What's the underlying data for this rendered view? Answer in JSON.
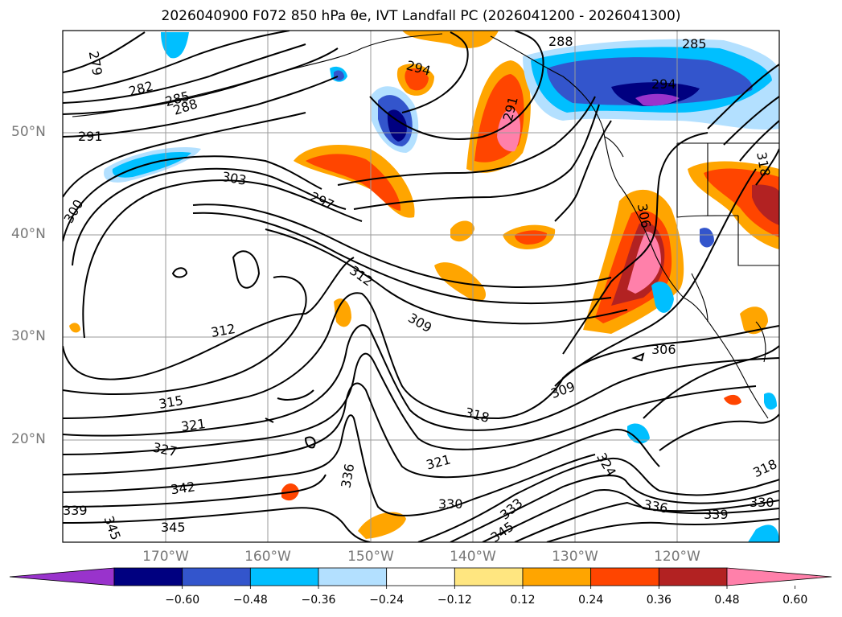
{
  "title": "2026040900 F072 850 hPa θe, IVT Landfall PC (2026041200 - 2026041300)",
  "map": {
    "longitude_labels": [
      "170°W",
      "160°W",
      "150°W",
      "140°W",
      "130°W",
      "120°W"
    ],
    "latitude_labels": [
      "50°N",
      "40°N",
      "30°N",
      "20°N"
    ],
    "contour_labels": [
      "279",
      "282",
      "285",
      "288",
      "291",
      "294",
      "297",
      "300",
      "303",
      "306",
      "309",
      "312",
      "315",
      "318",
      "321",
      "324",
      "327",
      "330",
      "333",
      "336",
      "339",
      "342",
      "345"
    ],
    "features": [
      "ocean-basin",
      "north-america-coastline",
      "theta-e-contours",
      "ivt-pc-shading"
    ]
  },
  "colorbar": {
    "colors": [
      "#9933cc",
      "#000080",
      "#3355cc",
      "#00bfff",
      "#b3e0ff",
      "#ffffff",
      "#ffe680",
      "#ffa500",
      "#ff4500",
      "#b22222",
      "#ff80aa"
    ],
    "tick_labels": [
      "−0.60",
      "−0.48",
      "−0.36",
      "−0.24",
      "−0.12",
      "0.12",
      "0.24",
      "0.36",
      "0.48",
      "0.60"
    ],
    "extend": "both"
  }
}
